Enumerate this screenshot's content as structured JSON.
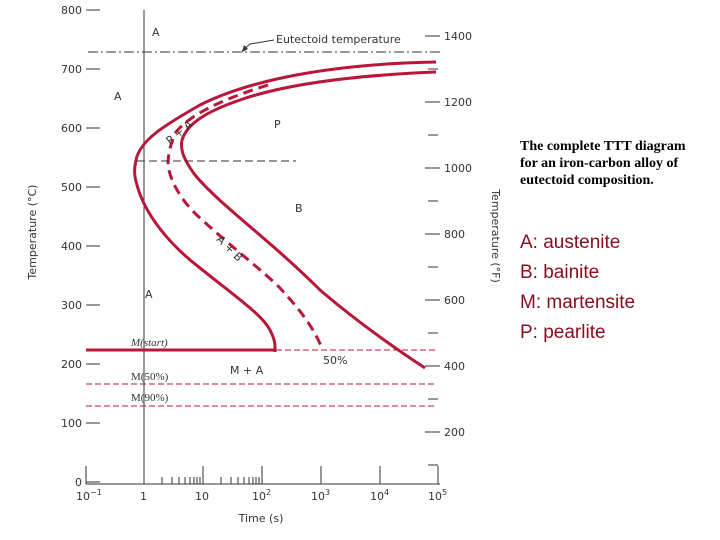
{
  "diagram": {
    "y_axis_left": {
      "label": "Temperature (°C)",
      "ticks": [
        "800",
        "700",
        "600",
        "500",
        "400",
        "300",
        "200",
        "100",
        "0"
      ]
    },
    "y_axis_right": {
      "label": "Temperature (°F)",
      "ticks": [
        "1400",
        "1200",
        "1000",
        "800",
        "600",
        "400",
        "200"
      ]
    },
    "x_axis": {
      "label": "Time (s)",
      "ticks": [
        {
          "base": "10",
          "exp": "−1"
        },
        {
          "base": "1",
          "exp": ""
        },
        {
          "base": "10",
          "exp": ""
        },
        {
          "base": "10",
          "exp": "2"
        },
        {
          "base": "10",
          "exp": "3"
        },
        {
          "base": "10",
          "exp": "4"
        },
        {
          "base": "10",
          "exp": "5"
        }
      ]
    },
    "eutectoid_label": "Eutectoid temperature",
    "regions": {
      "a_top": "A",
      "a_left": "A",
      "p_plus_a": "P + A",
      "p": "P",
      "b": "B",
      "a_plus_b": "A + B",
      "a_low": "A",
      "m_plus_a": "M + A",
      "fifty_pct": "50%"
    },
    "martensite_lines": {
      "start": "M(start)",
      "fifty": "M(50%)",
      "ninety": "M(90%)"
    }
  },
  "caption": "The complete TTT diagram for an iron-carbon alloy of eutectoid composition.",
  "legend": [
    "A: austenite",
    "B: bainite",
    "M: martensite",
    "P: pearlite"
  ],
  "colors": {
    "curve": "#b8173a",
    "legend_text": "#8a0a1e",
    "axis": "#333333"
  }
}
